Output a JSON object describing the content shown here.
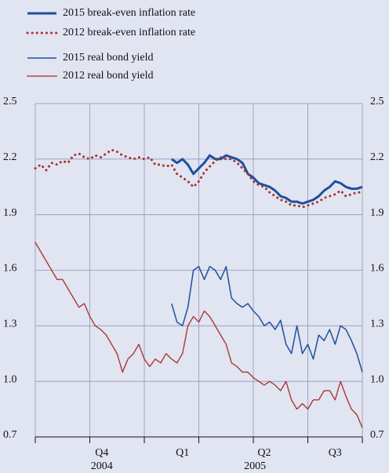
{
  "chart_data": {
    "type": "line",
    "x": [
      0,
      1,
      2,
      3,
      4,
      5,
      6,
      7,
      8,
      9,
      10,
      11,
      12,
      13,
      14,
      15,
      16,
      17,
      18,
      19,
      20,
      21,
      22,
      23,
      24,
      25,
      26,
      27,
      28,
      29,
      30,
      31,
      32,
      33,
      34,
      35,
      36,
      37,
      38,
      39,
      40,
      41,
      42,
      43,
      44,
      45,
      46,
      47,
      48,
      49,
      50,
      51,
      52,
      53,
      54,
      55,
      56,
      57,
      58,
      59,
      60
    ],
    "xlim": [
      0,
      60
    ],
    "xticks": [
      0,
      10,
      20,
      30,
      40,
      50,
      60
    ],
    "quarter_labels": [
      {
        "value": 12.2,
        "label": "Q4"
      },
      {
        "value": 27,
        "label": "Q1"
      },
      {
        "value": 42,
        "label": "Q2"
      },
      {
        "value": 55,
        "label": "Q3"
      }
    ],
    "year_labels": [
      {
        "value": 12.2,
        "label": "2004"
      },
      {
        "value": 40.3,
        "label": "2005"
      }
    ],
    "ylim": [
      0.7,
      2.5
    ],
    "yticks": [
      {
        "value": 0.7,
        "label": "0.7"
      },
      {
        "value": 1,
        "label": "1.0"
      },
      1.3,
      1.6,
      1.9,
      2.2,
      2.5
    ],
    "y2lim": [
      0.7,
      2.5
    ],
    "y2ticks": [
      {
        "value": 0.7,
        "label": "0.7"
      },
      {
        "value": 1,
        "label": "1.0"
      },
      1.3,
      1.6,
      1.9,
      2.2,
      2.5
    ],
    "grid": true,
    "series": [
      {
        "name": "2015 break-even inflation rate",
        "color": "#1f4f9e",
        "style": "solid",
        "width": 3,
        "values": [
          null,
          null,
          null,
          null,
          null,
          null,
          null,
          null,
          null,
          null,
          null,
          null,
          null,
          null,
          null,
          null,
          null,
          null,
          null,
          null,
          null,
          null,
          null,
          null,
          null,
          2.2,
          2.18,
          2.2,
          2.17,
          2.12,
          2.15,
          2.18,
          2.22,
          2.2,
          2.2,
          2.22,
          2.21,
          2.2,
          2.18,
          2.12,
          2.1,
          2.07,
          2.06,
          2.05,
          2.03,
          2.0,
          1.99,
          1.97,
          1.97,
          1.96,
          1.97,
          1.98,
          2.0,
          2.03,
          2.05,
          2.08,
          2.07,
          2.05,
          2.04,
          2.04,
          2.05
        ]
      },
      {
        "name": "2012 break-even inflation rate",
        "color": "#a8322d",
        "style": "dotted",
        "width": 3,
        "values": [
          2.15,
          2.17,
          2.14,
          2.18,
          2.17,
          2.19,
          2.18,
          2.22,
          2.23,
          2.21,
          2.2,
          2.22,
          2.21,
          2.23,
          2.25,
          2.24,
          2.22,
          2.21,
          2.2,
          2.21,
          2.2,
          2.21,
          2.17,
          2.17,
          2.16,
          2.17,
          2.12,
          2.1,
          2.08,
          2.05,
          2.08,
          2.13,
          2.16,
          2.19,
          2.21,
          2.2,
          2.2,
          2.18,
          2.15,
          2.12,
          2.08,
          2.06,
          2.05,
          2.02,
          2.0,
          1.98,
          1.97,
          1.95,
          1.95,
          1.94,
          1.95,
          1.96,
          1.97,
          1.99,
          2.0,
          2.01,
          2.03,
          2.0,
          2.01,
          2.02,
          2.02
        ]
      },
      {
        "name": "2015 real bond yield",
        "color": "#1f4f9e",
        "style": "solid",
        "width": 1.5,
        "values": [
          null,
          null,
          null,
          null,
          null,
          null,
          null,
          null,
          null,
          null,
          null,
          null,
          null,
          null,
          null,
          null,
          null,
          null,
          null,
          null,
          null,
          null,
          null,
          null,
          null,
          1.42,
          1.32,
          1.3,
          1.4,
          1.6,
          1.62,
          1.55,
          1.62,
          1.6,
          1.55,
          1.62,
          1.45,
          1.42,
          1.4,
          1.42,
          1.38,
          1.35,
          1.3,
          1.32,
          1.28,
          1.33,
          1.2,
          1.15,
          1.3,
          1.15,
          1.2,
          1.12,
          1.25,
          1.22,
          1.28,
          1.2,
          1.3,
          1.28,
          1.22,
          1.15,
          1.05
        ]
      },
      {
        "name": "2012 real bond yield",
        "color": "#a8322d",
        "style": "dotted",
        "width": 1.5,
        "values": [
          1.75,
          1.7,
          1.65,
          1.6,
          1.55,
          1.55,
          1.5,
          1.45,
          1.4,
          1.42,
          1.35,
          1.3,
          1.28,
          1.25,
          1.2,
          1.15,
          1.05,
          1.12,
          1.15,
          1.2,
          1.12,
          1.08,
          1.12,
          1.1,
          1.15,
          1.12,
          1.1,
          1.15,
          1.3,
          1.35,
          1.32,
          1.38,
          1.35,
          1.3,
          1.25,
          1.2,
          1.1,
          1.08,
          1.05,
          1.05,
          1.02,
          1.0,
          0.98,
          1.0,
          0.98,
          0.95,
          1.0,
          0.9,
          0.85,
          0.88,
          0.85,
          0.9,
          0.9,
          0.95,
          0.95,
          0.9,
          1.0,
          0.92,
          0.85,
          0.82,
          0.75
        ]
      }
    ]
  }
}
